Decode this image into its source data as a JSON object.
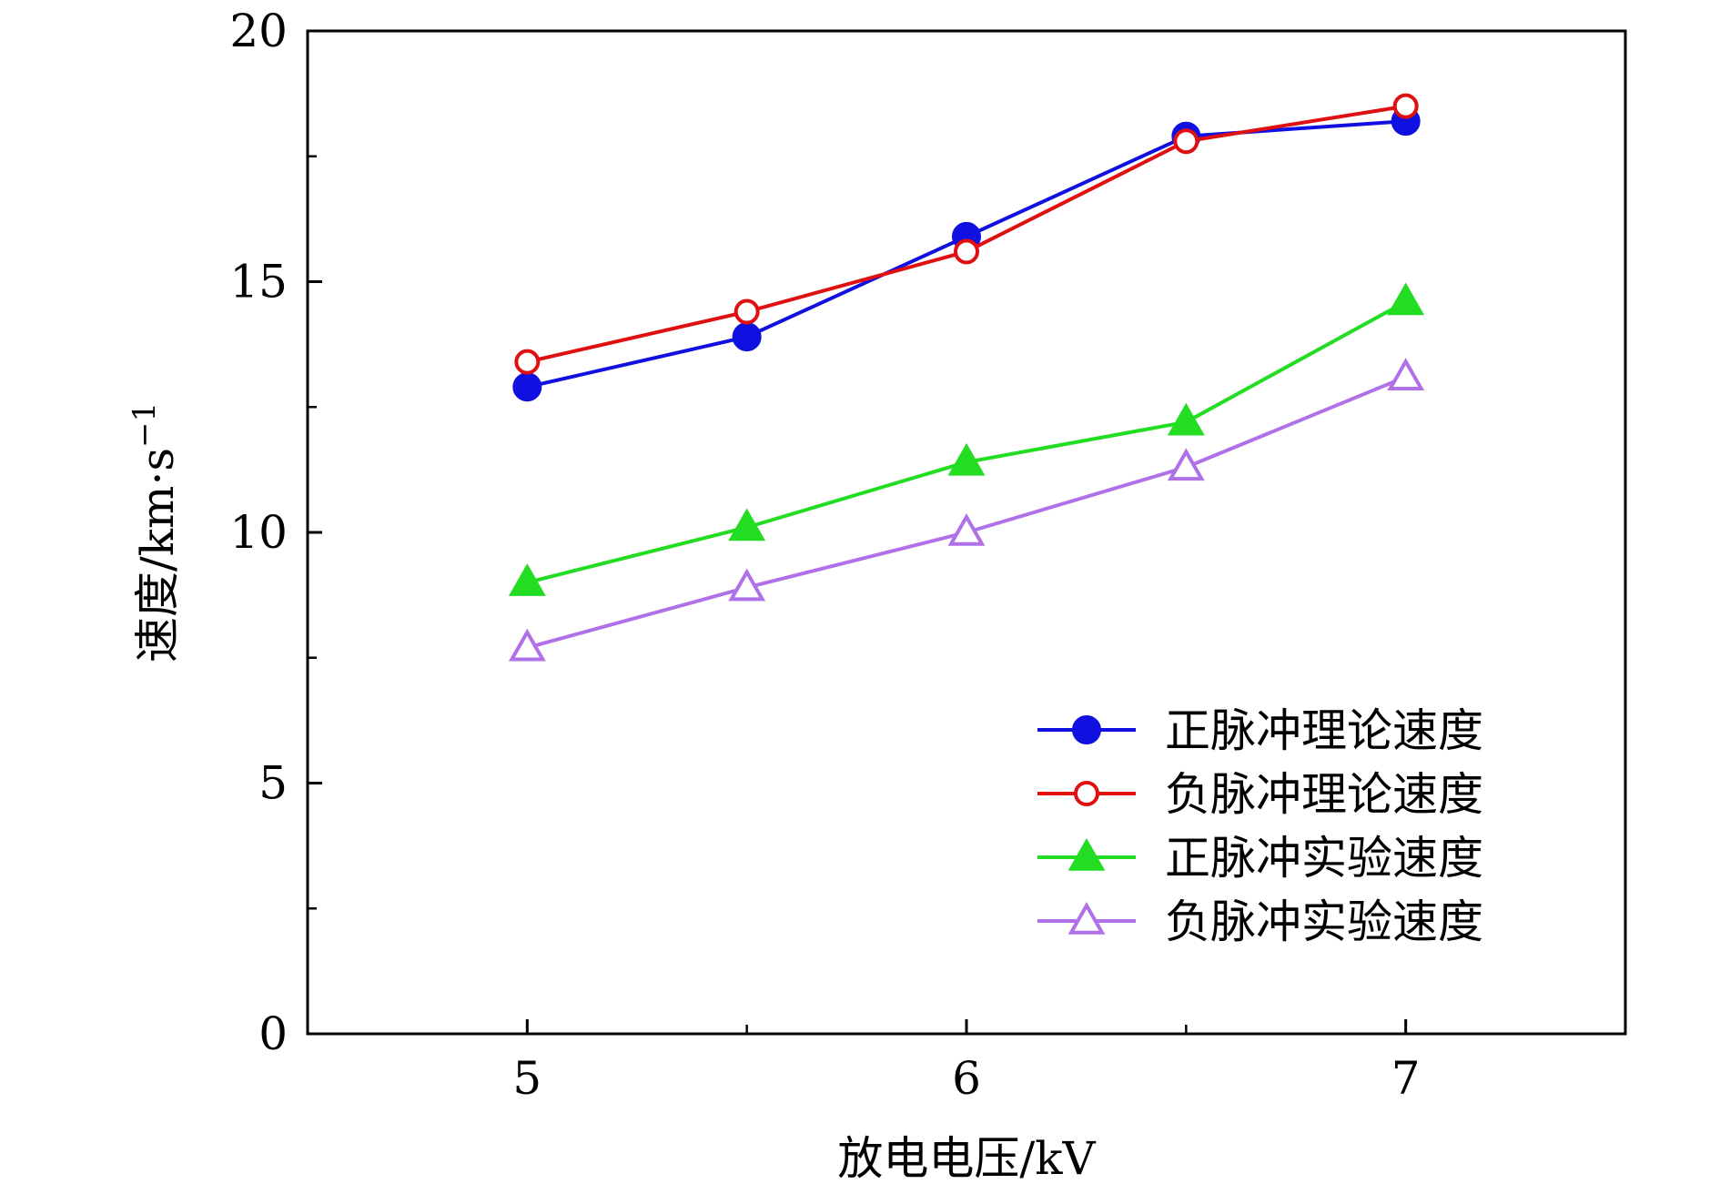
{
  "chart_data": {
    "type": "line",
    "xlabel": "放电电压/kV",
    "ylabel_main": "速度/km·s",
    "ylabel_sup": "−1",
    "xlim": [
      4.5,
      7.5
    ],
    "ylim": [
      0,
      20
    ],
    "x_ticks": [
      {
        "value": 5,
        "label": "5"
      },
      {
        "value": 6,
        "label": "6"
      },
      {
        "value": 7,
        "label": "7"
      }
    ],
    "x_minor_ticks": [
      5.5,
      6.5
    ],
    "y_ticks": [
      {
        "value": 0,
        "label": "0"
      },
      {
        "value": 5,
        "label": "5"
      },
      {
        "value": 10,
        "label": "10"
      },
      {
        "value": 15,
        "label": "15"
      },
      {
        "value": 20,
        "label": "20"
      }
    ],
    "y_minor_ticks": [
      2.5,
      7.5,
      12.5,
      17.5
    ],
    "grid": false,
    "legend_position": "bottom-right",
    "x": [
      5,
      5.5,
      6,
      6.5,
      7
    ],
    "series": [
      {
        "name": "正脉冲理论速度",
        "values": [
          12.9,
          13.9,
          15.9,
          17.9,
          18.2
        ],
        "color": "#1010e0",
        "marker": "filled-circle"
      },
      {
        "name": "负脉冲理论速度",
        "values": [
          13.4,
          14.4,
          15.6,
          17.8,
          18.5
        ],
        "color": "#e01010",
        "marker": "open-circle"
      },
      {
        "name": "正脉冲实验速度",
        "values": [
          9.0,
          10.1,
          11.4,
          12.2,
          14.6
        ],
        "color": "#22dd22",
        "marker": "filled-triangle"
      },
      {
        "name": "负脉冲实验速度",
        "values": [
          7.7,
          8.9,
          10.0,
          11.3,
          13.1
        ],
        "color": "#b070e8",
        "marker": "open-triangle"
      }
    ]
  }
}
